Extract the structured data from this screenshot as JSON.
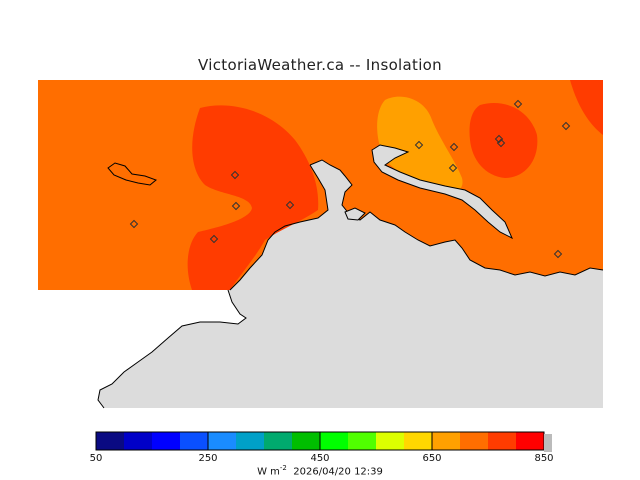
{
  "title": "VictoriaWeather.ca -- Insolation",
  "legend": {
    "colors": [
      "#0a0a82",
      "#0000c8",
      "#0000ff",
      "#0a50ff",
      "#1a8cff",
      "#00a0c8",
      "#00aa6e",
      "#00be00",
      "#00ff00",
      "#50ff00",
      "#dcff00",
      "#ffd700",
      "#ffa000",
      "#ff6e00",
      "#ff3c00",
      "#ff0000"
    ],
    "ticks": [
      "50",
      "250",
      "450",
      "650",
      "850"
    ],
    "units": "W m",
    "units_sup": "-2",
    "timestamp": "2026/04/20 12:39"
  },
  "map": {
    "land_color": "#dcdcdc",
    "field_colors": {
      "base": "#ff6e00",
      "high": "#ff3c00",
      "low": "#ffa000"
    },
    "stations": [
      {
        "name": "station-1",
        "label": ""
      },
      {
        "name": "station-2",
        "label": ""
      },
      {
        "name": "station-3",
        "label": ""
      },
      {
        "name": "station-4",
        "label": ""
      },
      {
        "name": "station-5",
        "label": ""
      },
      {
        "name": "station-6",
        "label": ""
      },
      {
        "name": "station-7",
        "label": ""
      },
      {
        "name": "station-8",
        "label": ""
      },
      {
        "name": "station-9",
        "label": ""
      },
      {
        "name": "station-10",
        "label": ""
      },
      {
        "name": "station-11",
        "label": ""
      },
      {
        "name": "station-12",
        "label": ""
      },
      {
        "name": "station-13",
        "label": ""
      }
    ]
  }
}
